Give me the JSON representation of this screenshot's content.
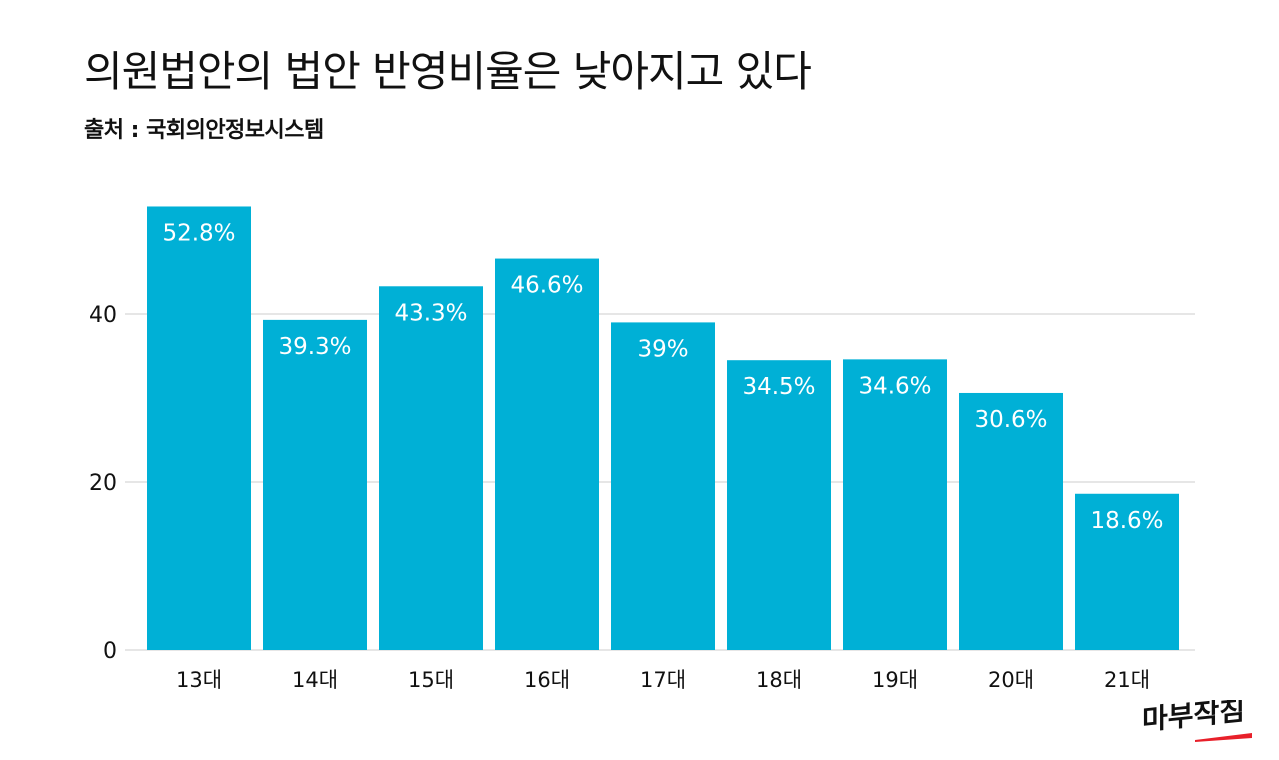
{
  "chart_data": {
    "type": "bar",
    "title": "의원법안의 법안 반영비율은 낮아지고 있다",
    "subtitle": "출처 : 국회의안정보시스템",
    "categories": [
      "13대",
      "14대",
      "15대",
      "16대",
      "17대",
      "18대",
      "19대",
      "20대",
      "21대"
    ],
    "values": [
      52.8,
      39.3,
      43.3,
      46.6,
      39,
      34.5,
      34.6,
      30.6,
      18.6
    ],
    "data_labels": [
      "52.8%",
      "39.3%",
      "43.3%",
      "46.6%",
      "39%",
      "34.5%",
      "34.6%",
      "30.6%",
      "18.6%"
    ],
    "yticks": [
      "0",
      "20",
      "40"
    ],
    "ylim": [
      0,
      55
    ],
    "grid": true,
    "xlabel": "",
    "ylabel": "",
    "bar_color": "#00b0d6",
    "grid_color": "#dddddd"
  },
  "logo": {
    "text": "마부작침",
    "accent_color": "#e8202a"
  }
}
